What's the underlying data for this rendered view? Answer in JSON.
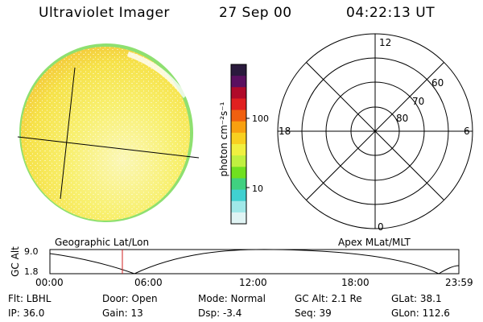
{
  "header": {
    "instrument": "Ultraviolet Imager",
    "date": "27 Sep 00",
    "time": "04:22:13 UT"
  },
  "colorbar": {
    "unit_label": "photon cm⁻²s⁻¹",
    "tick_labels": [
      "100",
      "10"
    ],
    "colors": [
      "#2a1a3d",
      "#5a1060",
      "#b00a2a",
      "#e02020",
      "#f06010",
      "#f8a010",
      "#f8d020",
      "#f0f040",
      "#c0f040",
      "#70e020",
      "#40d080",
      "#40d0d0",
      "#a0e8e8",
      "#e0f4f4"
    ]
  },
  "polar_plot": {
    "mlt_labels": {
      "top": "12",
      "left": "18",
      "right": "6",
      "bottom": "0"
    },
    "lat_labels": [
      "60",
      "70",
      "80"
    ]
  },
  "altitude_plot": {
    "left_title": "Geographic Lat/Lon",
    "right_title": "Apex MLat/MLT",
    "axis_label": "GC Alt",
    "y_ticks": [
      "9.0",
      "1.8"
    ],
    "x_ticks": [
      "00:00",
      "06:00",
      "12:00",
      "18:00",
      "23:59"
    ]
  },
  "footer": {
    "row1": {
      "flt": "Flt:  LBHL",
      "door": "Door:  Open",
      "mode": "Mode:  Normal",
      "gcalt": "GC Alt:  2.1  Re",
      "glat": "GLat:  38.1"
    },
    "row2": {
      "ip": "IP:  36.0",
      "gain": "Gain:  13",
      "dsp": "Dsp:     -3.4",
      "seq": "Seq:  39",
      "glon": "GLon:  112.6"
    }
  }
}
